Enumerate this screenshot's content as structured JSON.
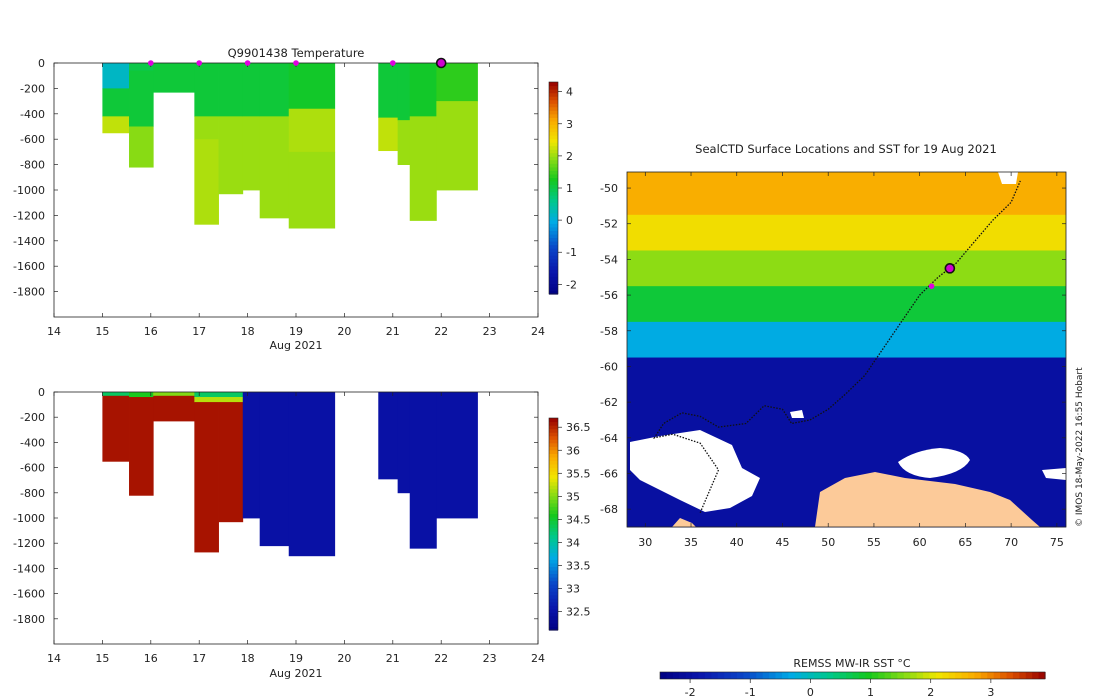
{
  "figure": {
    "credit": "© IMOS 18-May-2022 16:55 Hobart"
  },
  "chart_data": [
    {
      "id": "temperature-section",
      "type": "heatmap",
      "title": "Q9901438  Temperature",
      "xlabel": "Aug 2021",
      "ylabel": "",
      "xlim": [
        14,
        24
      ],
      "ylim": [
        -2000,
        0
      ],
      "xticks": [
        14,
        15,
        16,
        17,
        18,
        19,
        20,
        21,
        22,
        23,
        24
      ],
      "yticks": [
        0,
        -200,
        -400,
        -600,
        -800,
        -1000,
        -1200,
        -1400,
        -1600,
        -1800
      ],
      "colorbar": {
        "min": -2.3,
        "max": 4.3,
        "ticks": [
          4,
          3,
          2,
          1,
          0,
          -1,
          -2
        ]
      },
      "profile_markers": [
        16,
        17,
        18,
        19,
        21
      ],
      "current_profile_x": 22,
      "profiles": [
        {
          "x0": 15.0,
          "x1": 15.55,
          "max_depth": 550,
          "layers": [
            [
              0,
              200,
              0.2
            ],
            [
              200,
              420,
              1.1
            ],
            [
              420,
              550,
              2.2
            ]
          ]
        },
        {
          "x0": 15.55,
          "x1": 16.05,
          "max_depth": 820,
          "layers": [
            [
              0,
              60,
              1.0
            ],
            [
              60,
              500,
              1.1
            ],
            [
              500,
              820,
              1.9
            ]
          ]
        },
        {
          "x0": 16.05,
          "x1": 16.9,
          "max_depth": 230,
          "layers": [
            [
              0,
              230,
              1.1
            ]
          ]
        },
        {
          "x0": 16.9,
          "x1": 17.4,
          "max_depth": 1270,
          "layers": [
            [
              0,
              420,
              1.1
            ],
            [
              420,
              600,
              2.0
            ],
            [
              600,
              1270,
              2.1
            ]
          ]
        },
        {
          "x0": 17.4,
          "x1": 17.9,
          "max_depth": 1030,
          "layers": [
            [
              0,
              420,
              1.1
            ],
            [
              420,
              1030,
              2.0
            ]
          ]
        },
        {
          "x0": 17.9,
          "x1": 18.25,
          "max_depth": 1000,
          "layers": [
            [
              0,
              420,
              1.1
            ],
            [
              420,
              1000,
              2.0
            ]
          ]
        },
        {
          "x0": 18.25,
          "x1": 18.85,
          "max_depth": 1220,
          "layers": [
            [
              0,
              420,
              1.1
            ],
            [
              420,
              1220,
              2.0
            ]
          ]
        },
        {
          "x0": 18.85,
          "x1": 19.8,
          "max_depth": 1300,
          "layers": [
            [
              0,
              360,
              1.2
            ],
            [
              360,
              700,
              2.1
            ],
            [
              700,
              1300,
              2.0
            ]
          ]
        },
        {
          "x0": 20.7,
          "x1": 21.1,
          "max_depth": 690,
          "layers": [
            [
              0,
              430,
              1.1
            ],
            [
              430,
              690,
              2.2
            ]
          ]
        },
        {
          "x0": 21.1,
          "x1": 21.35,
          "max_depth": 800,
          "layers": [
            [
              0,
              450,
              1.1
            ],
            [
              450,
              800,
              2.0
            ]
          ]
        },
        {
          "x0": 21.35,
          "x1": 21.9,
          "max_depth": 1240,
          "layers": [
            [
              0,
              420,
              1.2
            ],
            [
              420,
              1240,
              2.0
            ]
          ]
        },
        {
          "x0": 21.9,
          "x1": 22.75,
          "max_depth": 1000,
          "layers": [
            [
              0,
              300,
              1.4
            ],
            [
              300,
              1000,
              2.0
            ]
          ]
        }
      ]
    },
    {
      "id": "salinity-section",
      "type": "heatmap",
      "title": "",
      "xlabel": "Aug 2021",
      "ylabel": "",
      "xlim": [
        14,
        24
      ],
      "ylim": [
        -2000,
        0
      ],
      "xticks": [
        14,
        15,
        16,
        17,
        18,
        19,
        20,
        21,
        22,
        23,
        24
      ],
      "yticks": [
        0,
        -200,
        -400,
        -600,
        -800,
        -1000,
        -1200,
        -1400,
        -1600,
        -1800
      ],
      "colorbar": {
        "min": 32.1,
        "max": 36.7,
        "ticks": [
          36.5,
          36,
          35.5,
          35,
          34.5,
          34,
          33.5,
          33,
          32.5
        ]
      },
      "profiles": [
        {
          "x0": 15.0,
          "x1": 15.55,
          "max_depth": 550,
          "layers": [
            [
              0,
              30,
              34.3
            ],
            [
              30,
              550,
              36.6
            ]
          ]
        },
        {
          "x0": 15.55,
          "x1": 16.05,
          "max_depth": 820,
          "layers": [
            [
              0,
              40,
              34.6
            ],
            [
              40,
              820,
              36.6
            ]
          ]
        },
        {
          "x0": 16.05,
          "x1": 16.9,
          "max_depth": 230,
          "layers": [
            [
              0,
              30,
              35.0
            ],
            [
              30,
              230,
              36.6
            ]
          ]
        },
        {
          "x0": 16.9,
          "x1": 17.4,
          "max_depth": 1270,
          "layers": [
            [
              0,
              40,
              34.3
            ],
            [
              40,
              80,
              35.2
            ],
            [
              80,
              1270,
              36.6
            ]
          ]
        },
        {
          "x0": 17.4,
          "x1": 17.9,
          "max_depth": 1030,
          "layers": [
            [
              0,
              40,
              34.3
            ],
            [
              40,
              80,
              35.2
            ],
            [
              80,
              1030,
              36.6
            ]
          ]
        },
        {
          "x0": 17.9,
          "x1": 18.25,
          "max_depth": 1000,
          "layers": [
            [
              0,
              1000,
              32.5
            ]
          ]
        },
        {
          "x0": 18.25,
          "x1": 18.85,
          "max_depth": 1220,
          "layers": [
            [
              0,
              1220,
              32.5
            ]
          ]
        },
        {
          "x0": 18.85,
          "x1": 19.8,
          "max_depth": 1300,
          "layers": [
            [
              0,
              1300,
              32.5
            ]
          ]
        },
        {
          "x0": 20.7,
          "x1": 21.1,
          "max_depth": 690,
          "layers": [
            [
              0,
              690,
              32.5
            ]
          ]
        },
        {
          "x0": 21.1,
          "x1": 21.35,
          "max_depth": 800,
          "layers": [
            [
              0,
              800,
              32.5
            ]
          ]
        },
        {
          "x0": 21.35,
          "x1": 21.9,
          "max_depth": 1240,
          "layers": [
            [
              0,
              1240,
              32.5
            ]
          ]
        },
        {
          "x0": 21.9,
          "x1": 22.75,
          "max_depth": 1000,
          "layers": [
            [
              0,
              1000,
              32.5
            ]
          ]
        }
      ]
    },
    {
      "id": "sst-map",
      "type": "heatmap",
      "title": "SealCTD Surface Locations and SST for 19 Aug 2021",
      "xlabel": "",
      "ylabel": "",
      "xlim": [
        28,
        76
      ],
      "ylim": [
        -69,
        -49.1
      ],
      "xticks": [
        30,
        35,
        40,
        45,
        50,
        55,
        60,
        65,
        70,
        75
      ],
      "yticks": [
        -50,
        -52,
        -54,
        -56,
        -58,
        -60,
        -62,
        -64,
        -66,
        -68
      ],
      "colorbar": {
        "label": "REMSS MW-IR SST °C",
        "min": -2.5,
        "max": 3.9,
        "ticks": [
          -2,
          -1,
          0,
          1,
          2,
          3
        ]
      },
      "sst_zones": [
        {
          "lat_top": -49.1,
          "lat_bottom": -51.5,
          "sst": 2.7
        },
        {
          "lat_top": -51.5,
          "lat_bottom": -53.5,
          "sst": 2.2
        },
        {
          "lat_top": -53.5,
          "lat_bottom": -55.5,
          "sst": 1.6
        },
        {
          "lat_top": -55.5,
          "lat_bottom": -57.5,
          "sst": 0.8
        },
        {
          "lat_top": -57.5,
          "lat_bottom": -59.5,
          "sst": -0.3
        },
        {
          "lat_top": -59.5,
          "lat_bottom": -69,
          "sst": -2.0
        }
      ],
      "track": [
        [
          36,
          -68.2
        ],
        [
          37,
          -67.0
        ],
        [
          38,
          -65.8
        ],
        [
          36,
          -64.3
        ],
        [
          33,
          -63.8
        ],
        [
          31,
          -64.0
        ],
        [
          32,
          -63.2
        ],
        [
          34,
          -62.6
        ],
        [
          36,
          -62.8
        ],
        [
          38,
          -63.4
        ],
        [
          41,
          -63.2
        ],
        [
          43,
          -62.2
        ],
        [
          45,
          -62.4
        ],
        [
          46,
          -63.2
        ],
        [
          48,
          -63.0
        ],
        [
          50,
          -62.4
        ],
        [
          52,
          -61.5
        ],
        [
          54,
          -60.5
        ],
        [
          56,
          -59.0
        ],
        [
          58,
          -57.5
        ],
        [
          60,
          -56.0
        ],
        [
          62,
          -55.0
        ],
        [
          64,
          -54.2
        ],
        [
          66,
          -53.0
        ],
        [
          68,
          -51.8
        ],
        [
          70,
          -50.8
        ],
        [
          71,
          -49.6
        ]
      ],
      "current_position": [
        63.3,
        -54.5
      ],
      "recent_positions": [
        [
          61.3,
          -55.5
        ]
      ]
    }
  ]
}
